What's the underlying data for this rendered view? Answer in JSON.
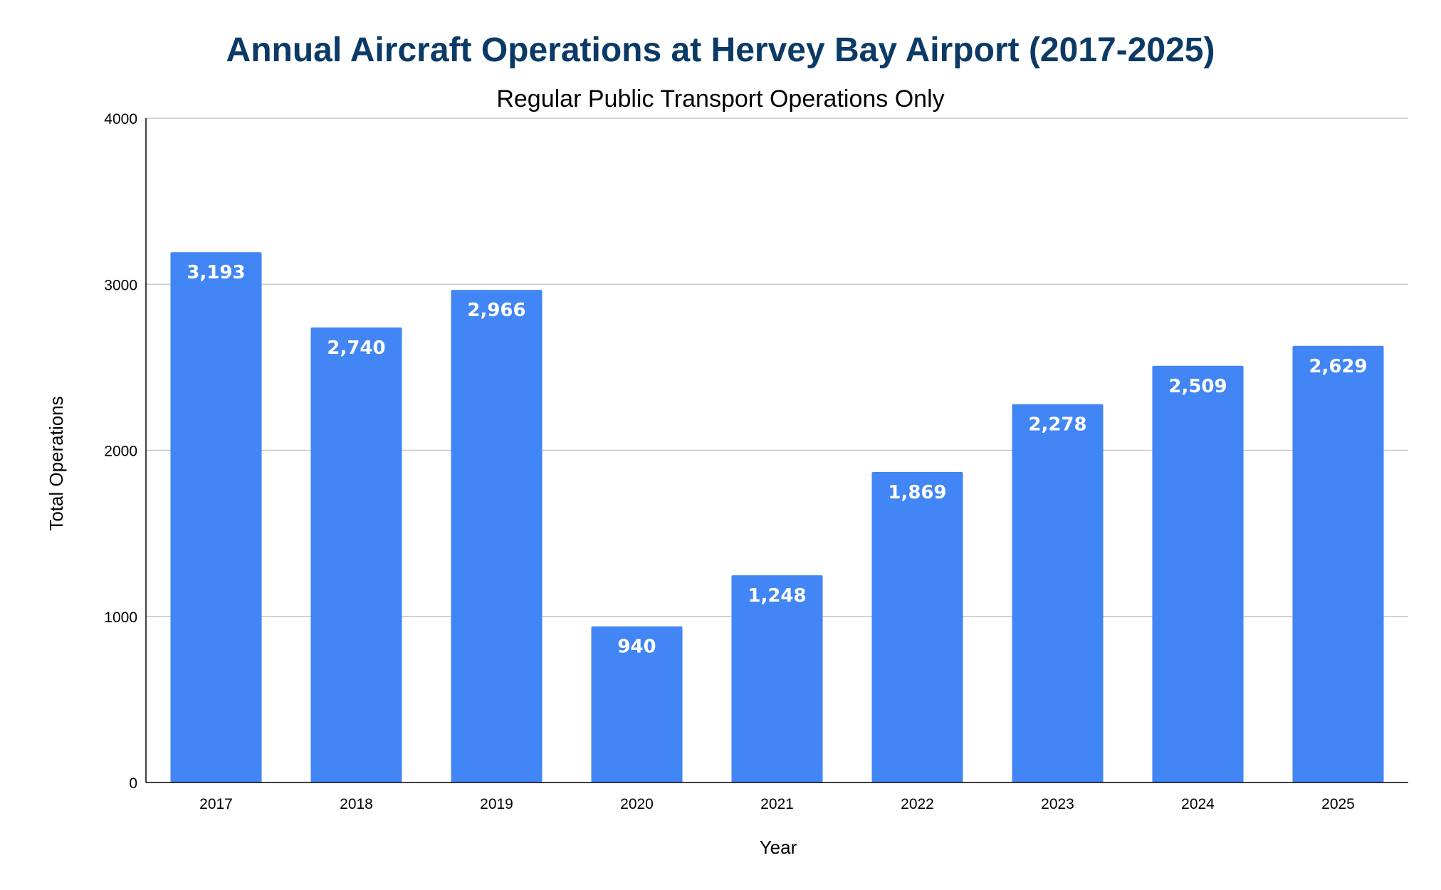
{
  "chart_data": {
    "type": "bar",
    "title": "Annual Aircraft Operations at Hervey Bay Airport (2017-2025)",
    "subtitle": "Regular Public Transport Operations Only",
    "xlabel": "Year",
    "ylabel": "Total Operations",
    "categories": [
      "2017",
      "2018",
      "2019",
      "2020",
      "2021",
      "2022",
      "2023",
      "2024",
      "2025"
    ],
    "values": [
      3193,
      2740,
      2966,
      940,
      1248,
      1869,
      2278,
      2509,
      2629
    ],
    "value_labels": [
      "3,193",
      "2,740",
      "2,966",
      "940",
      "1,248",
      "1,869",
      "2,278",
      "2,509",
      "2,629"
    ],
    "ylim": [
      0,
      4000
    ],
    "yticks": [
      0,
      1000,
      2000,
      3000,
      4000
    ],
    "ytick_labels": [
      "0",
      "1000",
      "2000",
      "3000",
      "4000"
    ],
    "grid": true,
    "legend": "none",
    "colors": {
      "bar": "#4285f4",
      "title": "#0b3a66",
      "grid": "#c8c8c8",
      "axis": "#000000",
      "data_label": "#ffffff"
    }
  }
}
